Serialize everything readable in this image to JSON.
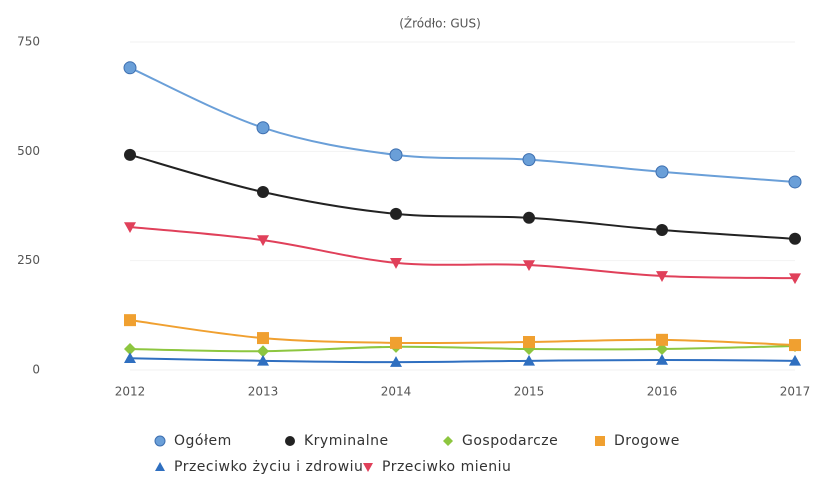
{
  "chart_data": {
    "type": "line",
    "subtitle": "(Źródło: GUS)",
    "categories": [
      "2012",
      "2013",
      "2014",
      "2015",
      "2016",
      "2017"
    ],
    "ylim": [
      0,
      750
    ],
    "yticks": [
      0,
      250,
      500,
      750
    ],
    "series": [
      {
        "name": "Ogółem",
        "color": "#6a9fd8",
        "marker": "circle",
        "values": [
          691,
          554,
          492,
          481,
          453,
          430
        ]
      },
      {
        "name": "Kryminalne",
        "color": "#222222",
        "marker": "circle",
        "values": [
          492,
          407,
          357,
          348,
          320,
          300
        ]
      },
      {
        "name": "Gospodarcze",
        "color": "#8dc63f",
        "marker": "diamond",
        "values": [
          48,
          43,
          53,
          48,
          48,
          55
        ]
      },
      {
        "name": "Drogowe",
        "color": "#f0a030",
        "marker": "square",
        "values": [
          114,
          73,
          62,
          64,
          69,
          57
        ]
      },
      {
        "name": "Przeciwko życiu i zdrowiu",
        "color": "#2f6fc0",
        "marker": "triangle",
        "values": [
          27,
          21,
          18,
          21,
          23,
          21
        ]
      },
      {
        "name": "Przeciwko mieniu",
        "color": "#e0405a",
        "marker": "triangle-down",
        "values": [
          327,
          297,
          245,
          240,
          215,
          210
        ]
      }
    ]
  }
}
